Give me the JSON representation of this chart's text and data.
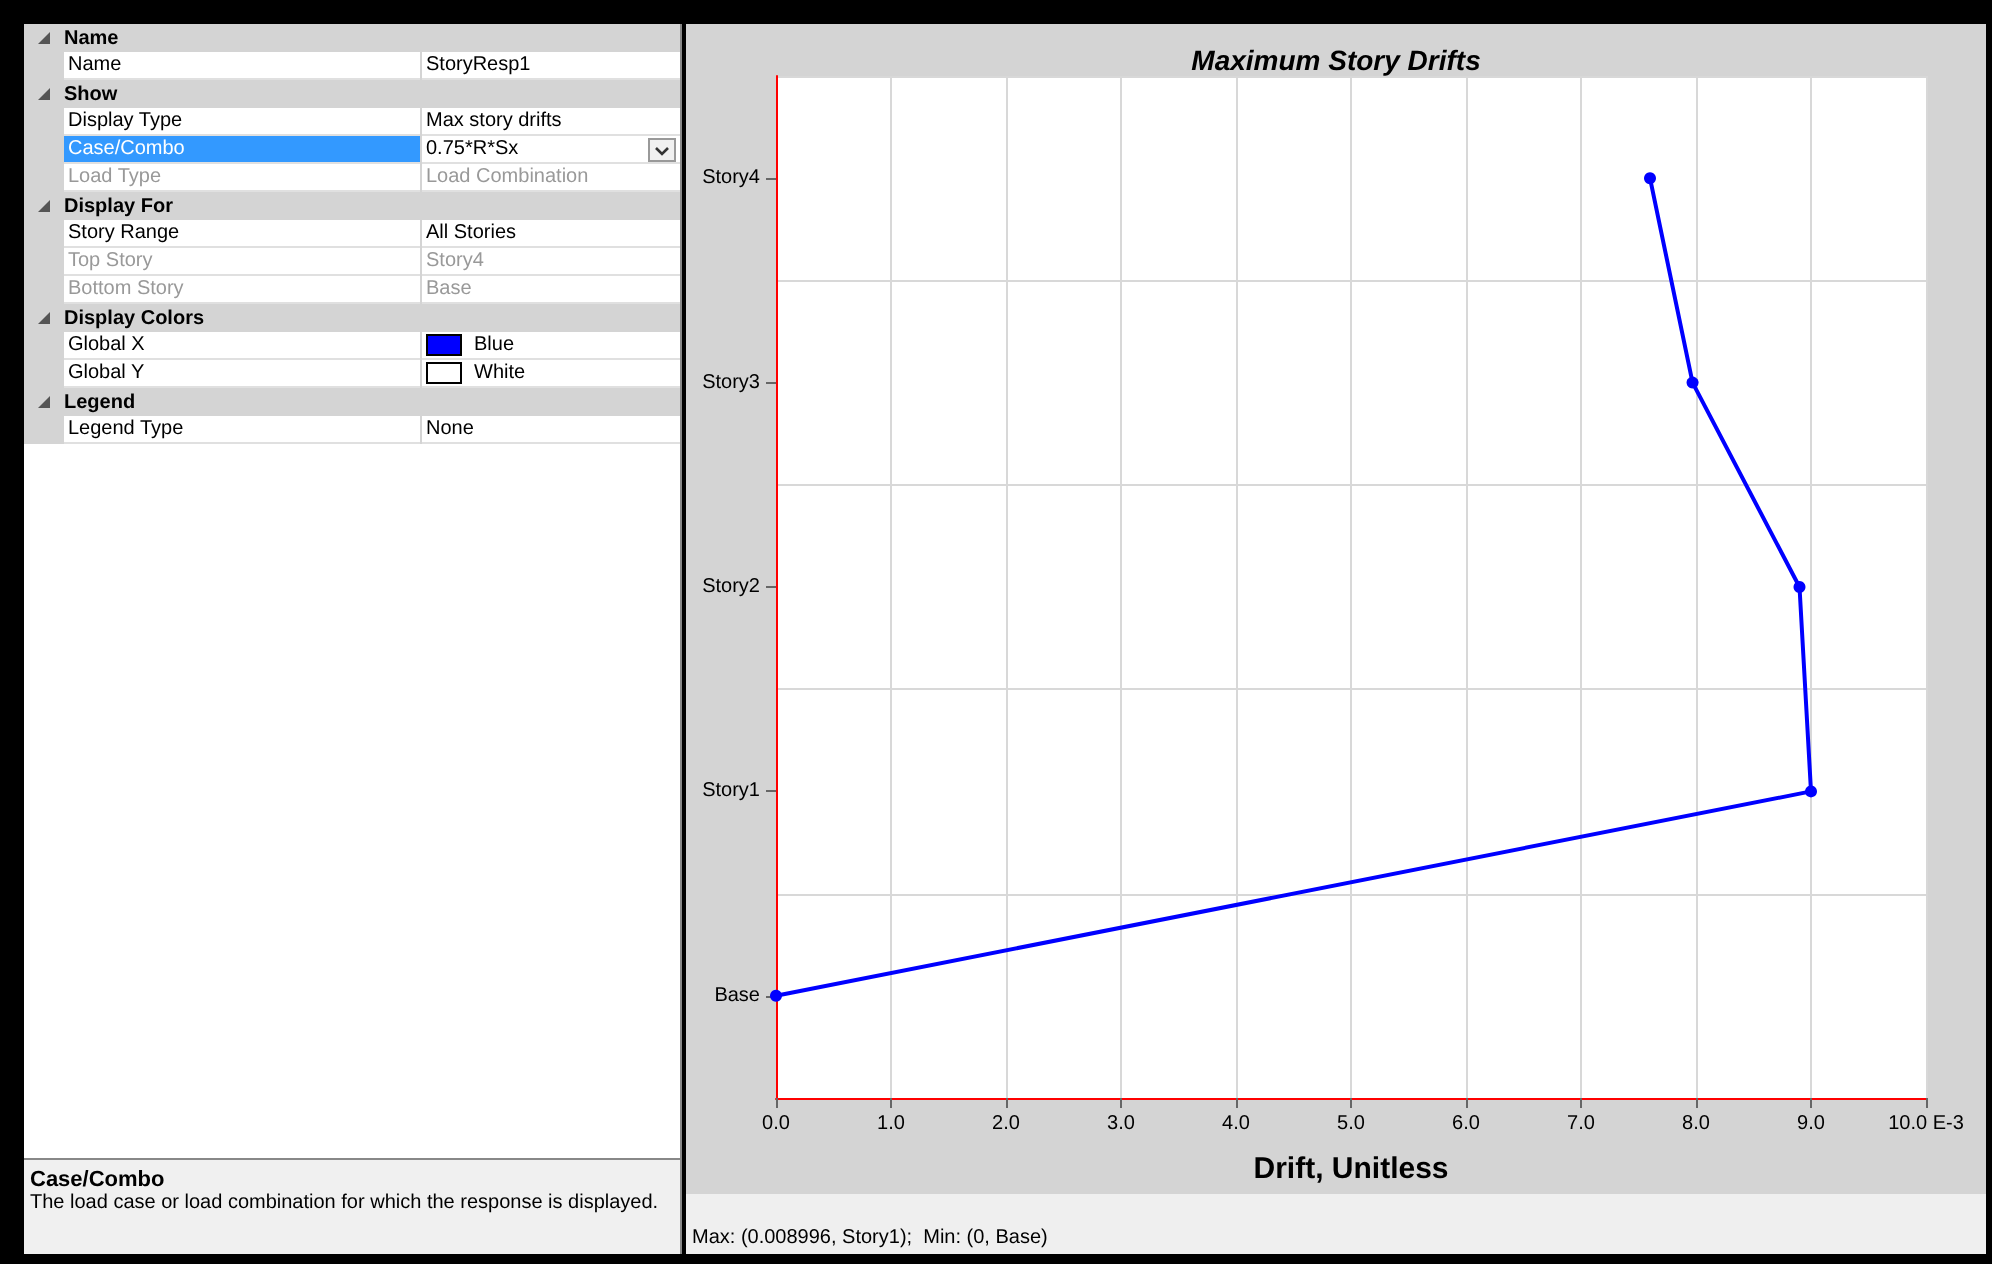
{
  "chart_data": [
    {
      "type": "other",
      "annotations": [
        "Name",
        "Name",
        "StoryResp1",
        "Show",
        "Display Type",
        "Max story drifts",
        "Case/Combo",
        "0.75*R*Sx",
        "Load Type",
        "Load Combination",
        "Display For",
        "Story Range",
        "All Stories",
        "Top Story",
        "Story4",
        "Bottom Story",
        "Base",
        "Display Colors",
        "Global X",
        "Blue",
        "Global Y",
        "White",
        "Legend",
        "Legend Type",
        "None",
        "Case/Combo",
        "The load case or load combination for which the response is displayed."
      ]
    },
    {
      "type": "line",
      "title": "Maximum Story Drifts",
      "xlabel": "Drift, Unitless",
      "orientation": "horizontal",
      "categories": [
        "Story4",
        "Story3",
        "Story2",
        "Story1",
        "Base"
      ],
      "series": [
        {
          "color": "#0000ff",
          "values": [
            7.6,
            7.97,
            8.9,
            9.0,
            0
          ]
        }
      ],
      "xlim": [
        0,
        10
      ],
      "xticks": [
        {
          "value": 0,
          "label": "0.0"
        },
        {
          "value": 1,
          "label": "1.0"
        },
        {
          "value": 2,
          "label": "2.0"
        },
        {
          "value": 3,
          "label": "3.0"
        },
        {
          "value": 4,
          "label": "4.0"
        },
        {
          "value": 5,
          "label": "5.0"
        },
        {
          "value": 6,
          "label": "6.0"
        },
        {
          "value": 7,
          "label": "7.0"
        },
        {
          "value": 8,
          "label": "8.0"
        },
        {
          "value": 9,
          "label": "9.0"
        },
        {
          "value": 10,
          "label": "10.0 E-3"
        }
      ],
      "grid": true,
      "marker": "circle",
      "line_style": "solid",
      "annotations": [
        "Max: (0.008996, Story1);  Min: (0, Base)"
      ]
    }
  ]
}
